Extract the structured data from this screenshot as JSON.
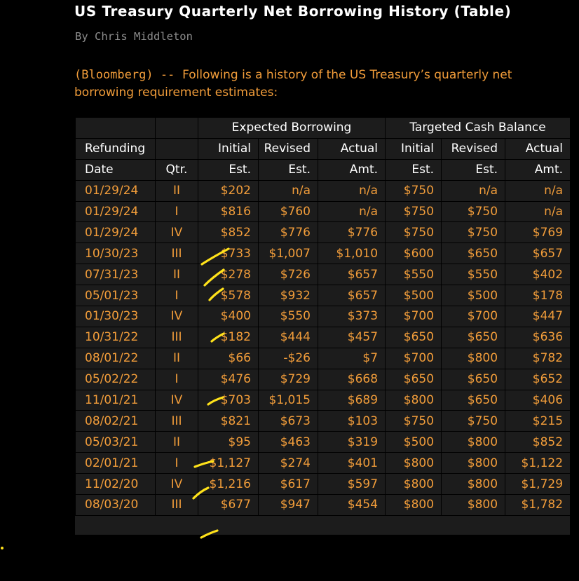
{
  "article": {
    "headline": "US Treasury Quarterly Net Borrowing History (Table)",
    "byline": "By Chris Middleton",
    "intro_source": "(Bloomberg) --",
    "intro_text": "Following is a history of the US Treasury’s quarterly net borrowing requirement estimates:"
  },
  "table": {
    "group_headers": {
      "expected_borrowing": "Expected Borrowing",
      "targeted_cash_balance": "Targeted Cash Balance"
    },
    "header_row_1": [
      "Refunding",
      "",
      "Initial",
      "Revised",
      "Actual",
      "Initial",
      "Revised",
      "Actual"
    ],
    "header_row_2": [
      "Date",
      "Qtr.",
      "Est.",
      "Est.",
      "Amt.",
      "Est.",
      "Est.",
      "Amt."
    ],
    "rows": [
      [
        "01/29/24",
        "II",
        "$202",
        "n/a",
        "n/a",
        "$750",
        "n/a",
        "n/a"
      ],
      [
        "01/29/24",
        "I",
        "$816",
        "$760",
        "n/a",
        "$750",
        "$750",
        "n/a"
      ],
      [
        "01/29/24",
        "IV",
        "$852",
        "$776",
        "$776",
        "$750",
        "$750",
        "$769"
      ],
      [
        "10/30/23",
        "III",
        "$733",
        "$1,007",
        "$1,010",
        "$600",
        "$650",
        "$657"
      ],
      [
        "07/31/23",
        "II",
        "$278",
        "$726",
        "$657",
        "$550",
        "$550",
        "$402"
      ],
      [
        "05/01/23",
        "I",
        "$578",
        "$932",
        "$657",
        "$500",
        "$500",
        "$178"
      ],
      [
        "01/30/23",
        "IV",
        "$400",
        "$550",
        "$373",
        "$700",
        "$700",
        "$447"
      ],
      [
        "10/31/22",
        "III",
        "$182",
        "$444",
        "$457",
        "$650",
        "$650",
        "$636"
      ],
      [
        "08/01/22",
        "II",
        "$66",
        "-$26",
        "$7",
        "$700",
        "$800",
        "$782"
      ],
      [
        "05/02/22",
        "I",
        "$476",
        "$729",
        "$668",
        "$650",
        "$650",
        "$652"
      ],
      [
        "11/01/21",
        "IV",
        "$703",
        "$1,015",
        "$689",
        "$800",
        "$650",
        "$406"
      ],
      [
        "08/02/21",
        "III",
        "$821",
        "$673",
        "$103",
        "$750",
        "$750",
        "$215"
      ],
      [
        "05/03/21",
        "II",
        "$95",
        "$463",
        "$319",
        "$500",
        "$800",
        "$852"
      ],
      [
        "02/01/21",
        "I",
        "$1,127",
        "$274",
        "$401",
        "$800",
        "$800",
        "$1,122"
      ],
      [
        "11/02/20",
        "IV",
        "$1,216",
        "$617",
        "$597",
        "$800",
        "$800",
        "$1,729"
      ],
      [
        "08/03/20",
        "III",
        "$677",
        "$947",
        "$454",
        "$800",
        "$800",
        "$1,782"
      ]
    ]
  },
  "annotation": {
    "marker_color": "#ffe21a"
  }
}
